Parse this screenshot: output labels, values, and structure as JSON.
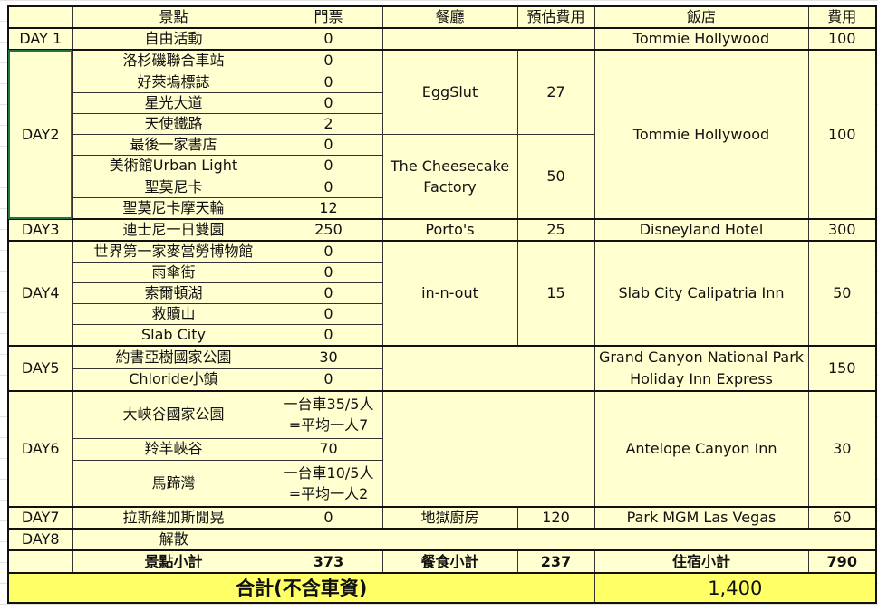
{
  "headers": {
    "spot": "景點",
    "ticket": "門票",
    "restaurant": "餐廳",
    "est_cost": "預估費用",
    "hotel": "飯店",
    "cost": "費用"
  },
  "day1": {
    "day": "DAY 1",
    "spot": "自由活動",
    "ticket": "0",
    "hotel": "Tommie Hollywood",
    "cost": "100"
  },
  "day2": {
    "day": "DAY2",
    "spots": [
      {
        "name": "洛杉磯聯合車站",
        "ticket": "0"
      },
      {
        "name": "好萊塢標誌",
        "ticket": "0"
      },
      {
        "name": "星光大道",
        "ticket": "0"
      },
      {
        "name": "天使鐵路",
        "ticket": "2"
      },
      {
        "name": "最後一家書店",
        "ticket": "0"
      },
      {
        "name": "美術館Urban Light",
        "ticket": "0"
      },
      {
        "name": "聖莫尼卡",
        "ticket": "0"
      },
      {
        "name": "聖莫尼卡摩天輪",
        "ticket": "12"
      }
    ],
    "restaurants": [
      {
        "name": "EggSlut",
        "cost": "27"
      },
      {
        "name": "The Cheesecake Factory",
        "cost": "50"
      }
    ],
    "hotel": "Tommie Hollywood",
    "cost": "100"
  },
  "day3": {
    "day": "DAY3",
    "spot": "迪士尼一日雙園",
    "ticket": "250",
    "restaurant": "Porto's",
    "rcost": "25",
    "hotel": "Disneyland Hotel",
    "cost": "300"
  },
  "day4": {
    "day": "DAY4",
    "spots": [
      {
        "name": "世界第一家麥當勞博物館",
        "ticket": "0"
      },
      {
        "name": "雨傘街",
        "ticket": "0"
      },
      {
        "name": "索爾頓湖",
        "ticket": "0"
      },
      {
        "name": "救贖山",
        "ticket": "0"
      },
      {
        "name": "Slab City",
        "ticket": "0"
      }
    ],
    "restaurant": "in-n-out",
    "rcost": "15",
    "hotel": "Slab City Calipatria Inn",
    "cost": "50"
  },
  "day5": {
    "day": "DAY5",
    "spots": [
      {
        "name": "約書亞樹國家公園",
        "ticket": "30"
      },
      {
        "name": "Chloride小鎮",
        "ticket": "0"
      }
    ],
    "hotel": "Grand Canyon National Park Holiday Inn Express",
    "cost": "150"
  },
  "day6": {
    "day": "DAY6",
    "spots": [
      {
        "name": "大峽谷國家公園",
        "ticket": "一台車35/5人 =平均一人7"
      },
      {
        "name": "羚羊峽谷",
        "ticket": "70"
      },
      {
        "name": "馬蹄灣",
        "ticket": "一台車10/5人 =平均一人2"
      }
    ],
    "hotel": "Antelope Canyon Inn",
    "cost": "30"
  },
  "day7": {
    "day": "DAY7",
    "spot": "拉斯維加斯閒晃",
    "ticket": "0",
    "restaurant": "地獄廚房",
    "rcost": "120",
    "hotel": "Park MGM Las Vegas",
    "cost": "60"
  },
  "day8": {
    "day": "DAY8",
    "spot": "解散"
  },
  "subtotals": {
    "spot_label": "景點小計",
    "spot_value": "373",
    "food_label": "餐食小計",
    "food_value": "237",
    "hotel_label": "住宿小計",
    "hotel_value": "790"
  },
  "total": {
    "label": "合計(不含車資)",
    "value": "1,400"
  },
  "colors": {
    "cell_fill": "#ffffd0",
    "total_fill": "#ffff66",
    "selection": "#217346"
  }
}
